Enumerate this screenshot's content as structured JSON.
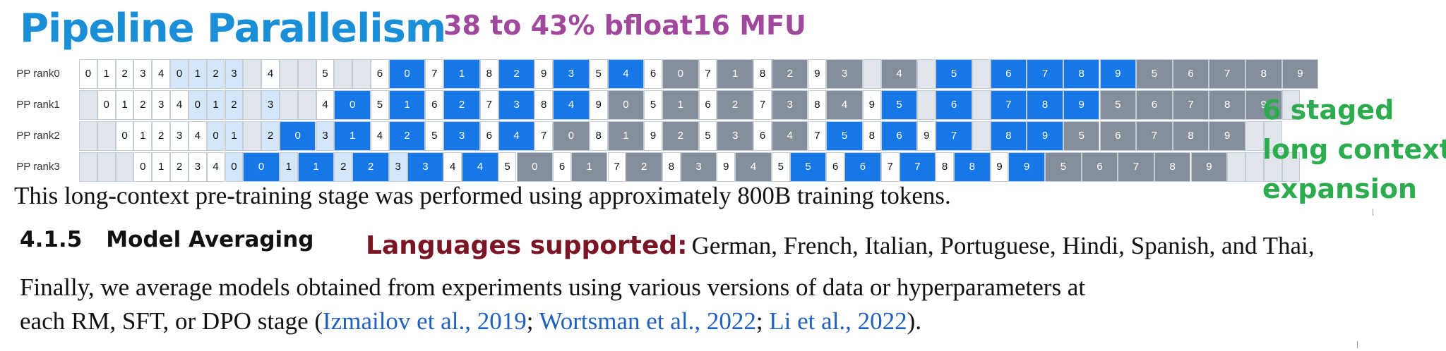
{
  "title": "Pipeline Parallelism",
  "mfu": "38 to 43% bfloat16 MFU",
  "staged": [
    "6 staged",
    "long context",
    "expansion"
  ],
  "pp_rows": [
    {
      "label": "PP rank0",
      "cells": [
        [
          "w",
          "0"
        ],
        [
          "w",
          "1"
        ],
        [
          "w",
          "2"
        ],
        [
          "w",
          "3"
        ],
        [
          "w",
          "4"
        ],
        [
          "l",
          "0"
        ],
        [
          "l",
          "1"
        ],
        [
          "l",
          "2"
        ],
        [
          "l",
          "3"
        ],
        [
          "e",
          ""
        ],
        [
          "w",
          "4"
        ],
        [
          "e",
          ""
        ],
        [
          "e",
          ""
        ],
        [
          "w",
          "5"
        ],
        [
          "e",
          ""
        ],
        [
          "e",
          ""
        ],
        [
          "w",
          "6"
        ],
        [
          "b",
          "0"
        ],
        [
          "w",
          "7"
        ],
        [
          "b",
          "1"
        ],
        [
          "w",
          "8"
        ],
        [
          "b",
          "2"
        ],
        [
          "w",
          "9"
        ],
        [
          "b",
          "3"
        ],
        [
          "w",
          "5"
        ],
        [
          "b",
          "4"
        ],
        [
          "w",
          "6"
        ],
        [
          "g",
          "0"
        ],
        [
          "w",
          "7"
        ],
        [
          "g",
          "1"
        ],
        [
          "w",
          "8"
        ],
        [
          "g",
          "2"
        ],
        [
          "w",
          "9"
        ],
        [
          "g",
          "3"
        ],
        [
          "e",
          ""
        ],
        [
          "g",
          "4"
        ],
        [
          "e",
          ""
        ],
        [
          "b",
          "5"
        ],
        [
          "e",
          ""
        ],
        [
          "b",
          "6"
        ],
        [
          "b",
          "7"
        ],
        [
          "b",
          "8"
        ],
        [
          "b",
          "9"
        ],
        [
          "g",
          "5"
        ],
        [
          "g",
          "6"
        ],
        [
          "g",
          "7"
        ],
        [
          "g",
          "8"
        ],
        [
          "g",
          "9"
        ]
      ]
    },
    {
      "label": "PP rank1",
      "cells": [
        [
          "e",
          ""
        ],
        [
          "w",
          "0"
        ],
        [
          "w",
          "1"
        ],
        [
          "w",
          "2"
        ],
        [
          "w",
          "3"
        ],
        [
          "w",
          "4"
        ],
        [
          "l",
          "0"
        ],
        [
          "l",
          "1"
        ],
        [
          "l",
          "2"
        ],
        [
          "e",
          ""
        ],
        [
          "l",
          "3"
        ],
        [
          "e",
          ""
        ],
        [
          "e",
          ""
        ],
        [
          "w",
          "4"
        ],
        [
          "b",
          "0"
        ],
        [
          "w",
          "5"
        ],
        [
          "b",
          "1"
        ],
        [
          "w",
          "6"
        ],
        [
          "b",
          "2"
        ],
        [
          "w",
          "7"
        ],
        [
          "b",
          "3"
        ],
        [
          "w",
          "8"
        ],
        [
          "b",
          "4"
        ],
        [
          "w",
          "9"
        ],
        [
          "g",
          "0"
        ],
        [
          "w",
          "5"
        ],
        [
          "g",
          "1"
        ],
        [
          "w",
          "6"
        ],
        [
          "g",
          "2"
        ],
        [
          "w",
          "7"
        ],
        [
          "g",
          "3"
        ],
        [
          "w",
          "8"
        ],
        [
          "g",
          "4"
        ],
        [
          "w",
          "9"
        ],
        [
          "b",
          "5"
        ],
        [
          "e",
          ""
        ],
        [
          "b",
          "6"
        ],
        [
          "e",
          ""
        ],
        [
          "b",
          "7"
        ],
        [
          "b",
          "8"
        ],
        [
          "b",
          "9"
        ],
        [
          "g",
          "5"
        ],
        [
          "g",
          "6"
        ],
        [
          "g",
          "7"
        ],
        [
          "g",
          "8"
        ],
        [
          "g",
          "9"
        ],
        [
          "e",
          ""
        ]
      ]
    },
    {
      "label": "PP rank2",
      "cells": [
        [
          "e",
          ""
        ],
        [
          "e",
          ""
        ],
        [
          "w",
          "0"
        ],
        [
          "w",
          "1"
        ],
        [
          "w",
          "2"
        ],
        [
          "w",
          "3"
        ],
        [
          "w",
          "4"
        ],
        [
          "l",
          "0"
        ],
        [
          "l",
          "1"
        ],
        [
          "e",
          ""
        ],
        [
          "l",
          "2"
        ],
        [
          "b",
          "0"
        ],
        [
          "l",
          "3"
        ],
        [
          "b",
          "1"
        ],
        [
          "w",
          "4"
        ],
        [
          "b",
          "2"
        ],
        [
          "w",
          "5"
        ],
        [
          "b",
          "3"
        ],
        [
          "w",
          "6"
        ],
        [
          "b",
          "4"
        ],
        [
          "w",
          "7"
        ],
        [
          "g",
          "0"
        ],
        [
          "w",
          "8"
        ],
        [
          "g",
          "1"
        ],
        [
          "w",
          "9"
        ],
        [
          "g",
          "2"
        ],
        [
          "w",
          "5"
        ],
        [
          "g",
          "3"
        ],
        [
          "w",
          "6"
        ],
        [
          "g",
          "4"
        ],
        [
          "w",
          "7"
        ],
        [
          "b",
          "5"
        ],
        [
          "w",
          "8"
        ],
        [
          "b",
          "6"
        ],
        [
          "w",
          "9"
        ],
        [
          "b",
          "7"
        ],
        [
          "e",
          ""
        ],
        [
          "b",
          "8"
        ],
        [
          "b",
          "9"
        ],
        [
          "g",
          "5"
        ],
        [
          "g",
          "6"
        ],
        [
          "g",
          "7"
        ],
        [
          "g",
          "8"
        ],
        [
          "g",
          "9"
        ],
        [
          "e",
          ""
        ],
        [
          "e",
          ""
        ]
      ]
    },
    {
      "label": "PP rank3",
      "cells": [
        [
          "e",
          ""
        ],
        [
          "e",
          ""
        ],
        [
          "e",
          ""
        ],
        [
          "w",
          "0"
        ],
        [
          "w",
          "1"
        ],
        [
          "w",
          "2"
        ],
        [
          "w",
          "3"
        ],
        [
          "w",
          "4"
        ],
        [
          "l",
          "0"
        ],
        [
          "b",
          "0"
        ],
        [
          "l",
          "1"
        ],
        [
          "b",
          "1"
        ],
        [
          "l",
          "2"
        ],
        [
          "b",
          "2"
        ],
        [
          "l",
          "3"
        ],
        [
          "b",
          "3"
        ],
        [
          "w",
          "4"
        ],
        [
          "b",
          "4"
        ],
        [
          "w",
          "5"
        ],
        [
          "g",
          "0"
        ],
        [
          "w",
          "6"
        ],
        [
          "g",
          "1"
        ],
        [
          "w",
          "7"
        ],
        [
          "g",
          "2"
        ],
        [
          "w",
          "8"
        ],
        [
          "g",
          "3"
        ],
        [
          "w",
          "9"
        ],
        [
          "g",
          "4"
        ],
        [
          "w",
          "5"
        ],
        [
          "b",
          "5"
        ],
        [
          "w",
          "6"
        ],
        [
          "b",
          "6"
        ],
        [
          "w",
          "7"
        ],
        [
          "b",
          "7"
        ],
        [
          "w",
          "8"
        ],
        [
          "b",
          "8"
        ],
        [
          "w",
          "9"
        ],
        [
          "b",
          "9"
        ],
        [
          "g",
          "5"
        ],
        [
          "g",
          "6"
        ],
        [
          "g",
          "7"
        ],
        [
          "g",
          "8"
        ],
        [
          "g",
          "9"
        ],
        [
          "e",
          ""
        ],
        [
          "e",
          ""
        ],
        [
          "e",
          ""
        ],
        [
          "e",
          ""
        ]
      ]
    }
  ],
  "cut_line": "This long-context pre-training stage was performed using approximately 800B training tokens.",
  "section": {
    "number": "4.1.5",
    "title": "Model Averaging"
  },
  "languages": {
    "label": "Languages supported:",
    "value": "German, French, Italian, Portuguese, Hindi, Spanish, and Thai,"
  },
  "para": {
    "line1": "Finally, we average models obtained from experiments using various versions of data or hyperparameters at",
    "line2_pre": "each RM, SFT, or DPO stage (",
    "cite1_a": "Izmailov et al.",
    "sep1": ", ",
    "cite1_b": "2019",
    "semi1": "; ",
    "cite2_a": "Wortsman et al.",
    "sep2": ", ",
    "cite2_b": "2022",
    "semi2": "; ",
    "cite3_a": "Li et al.",
    "sep3": ", ",
    "cite3_b": "2022",
    "end": ")."
  },
  "colors": {
    "white": "#ffffff",
    "light": "#d4e6fa",
    "empty": "#e1e6ec",
    "blue": "#1677e8",
    "gray": "#858f9c",
    "title": "#1a8fd8",
    "mfu": "#a0489c",
    "staged": "#2cab4f",
    "lang": "#7a1526",
    "cite": "#2060c0"
  }
}
